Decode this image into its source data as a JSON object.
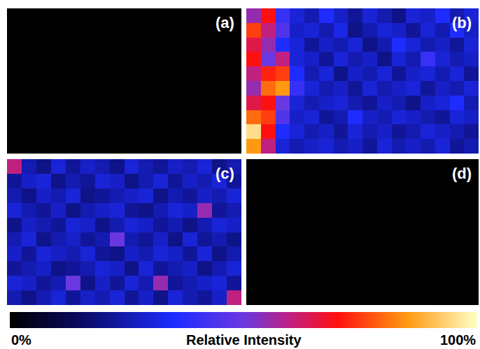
{
  "chart_data": {
    "type": "heatmap",
    "tick_labels": false,
    "panels": [
      {
        "label": "(a)",
        "z": [
          [
            0,
            0,
            0,
            0,
            0,
            0,
            0,
            0,
            0,
            0,
            0,
            0,
            0,
            0,
            0,
            0
          ],
          [
            0,
            0,
            0,
            0,
            0,
            0,
            0,
            0,
            0,
            0,
            0,
            0,
            0,
            0,
            0,
            0
          ],
          [
            0,
            0,
            0,
            0,
            0,
            0,
            0,
            0,
            0,
            0,
            0,
            0,
            0,
            0,
            0,
            0
          ],
          [
            0,
            0,
            0,
            0,
            0,
            0,
            0,
            0,
            0,
            0,
            0,
            0,
            0,
            0,
            0,
            0
          ],
          [
            0,
            0,
            0,
            0,
            0,
            0,
            0,
            0,
            0,
            0,
            0,
            0,
            0,
            0,
            0,
            0
          ],
          [
            0,
            0,
            0,
            0,
            0,
            0,
            0,
            0,
            0,
            0,
            0,
            0,
            0,
            0,
            0,
            0
          ],
          [
            0,
            0,
            0,
            0,
            0,
            0,
            0,
            0,
            0,
            0,
            0,
            0,
            0,
            0,
            0,
            0
          ],
          [
            0,
            0,
            0,
            0,
            0,
            0,
            0,
            0,
            0,
            0,
            0,
            0,
            0,
            0,
            0,
            0
          ],
          [
            0,
            0,
            0,
            0,
            0,
            0,
            0,
            0,
            0,
            0,
            0,
            0,
            0,
            0,
            0,
            0
          ],
          [
            0,
            0,
            0,
            0,
            0,
            0,
            0,
            0,
            0,
            0,
            0,
            0,
            0,
            0,
            0,
            0
          ]
        ]
      },
      {
        "label": "(b)",
        "z": [
          [
            55,
            70,
            40,
            30,
            25,
            35,
            28,
            22,
            30,
            25,
            20,
            30,
            28,
            35,
            25,
            30
          ],
          [
            75,
            60,
            45,
            28,
            30,
            25,
            32,
            20,
            25,
            30,
            28,
            22,
            30,
            25,
            35,
            28
          ],
          [
            65,
            55,
            35,
            30,
            22,
            28,
            25,
            30,
            20,
            25,
            35,
            30,
            25,
            28,
            22,
            30
          ],
          [
            70,
            50,
            60,
            30,
            28,
            22,
            30,
            25,
            28,
            20,
            30,
            25,
            40,
            30,
            25,
            28
          ],
          [
            60,
            72,
            75,
            35,
            25,
            30,
            20,
            28,
            25,
            30,
            22,
            28,
            30,
            25,
            30,
            22
          ],
          [
            55,
            80,
            85,
            40,
            30,
            25,
            28,
            22,
            30,
            25,
            28,
            30,
            22,
            28,
            25,
            30
          ],
          [
            65,
            70,
            50,
            30,
            25,
            28,
            30,
            25,
            22,
            28,
            25,
            20,
            28,
            30,
            35,
            25
          ],
          [
            80,
            75,
            45,
            28,
            30,
            22,
            25,
            35,
            28,
            25,
            30,
            28,
            25,
            22,
            30,
            28
          ],
          [
            95,
            70,
            35,
            30,
            25,
            28,
            22,
            30,
            25,
            28,
            22,
            25,
            30,
            28,
            25,
            22
          ],
          [
            85,
            60,
            30,
            25,
            28,
            30,
            25,
            28,
            22,
            30,
            25,
            28,
            25,
            30,
            22,
            25
          ]
        ]
      },
      {
        "label": "(c)",
        "z": [
          [
            60,
            25,
            20,
            30,
            22,
            28,
            25,
            20,
            30,
            25,
            22,
            28,
            25,
            30,
            20,
            25
          ],
          [
            22,
            28,
            30,
            20,
            25,
            22,
            30,
            28,
            20,
            25,
            30,
            22,
            28,
            25,
            30,
            22
          ],
          [
            25,
            20,
            28,
            25,
            30,
            20,
            22,
            25,
            28,
            30,
            20,
            25,
            22,
            28,
            25,
            30
          ],
          [
            30,
            25,
            22,
            28,
            20,
            25,
            28,
            30,
            22,
            20,
            25,
            30,
            28,
            55,
            22,
            25
          ],
          [
            20,
            28,
            25,
            22,
            30,
            28,
            20,
            25,
            30,
            28,
            22,
            25,
            20,
            25,
            30,
            28
          ],
          [
            25,
            30,
            20,
            25,
            28,
            22,
            25,
            50,
            25,
            22,
            28,
            20,
            30,
            22,
            25,
            20
          ],
          [
            28,
            22,
            30,
            28,
            25,
            30,
            22,
            20,
            28,
            25,
            30,
            28,
            22,
            30,
            20,
            25
          ],
          [
            22,
            25,
            28,
            20,
            22,
            25,
            30,
            28,
            20,
            30,
            22,
            25,
            28,
            20,
            25,
            30
          ],
          [
            30,
            28,
            22,
            25,
            50,
            20,
            28,
            22,
            30,
            25,
            55,
            22,
            25,
            28,
            30,
            22
          ],
          [
            25,
            20,
            25,
            30,
            22,
            28,
            25,
            30,
            22,
            28,
            20,
            30,
            25,
            22,
            28,
            60
          ]
        ]
      },
      {
        "label": "(d)",
        "z": [
          [
            0,
            0,
            0,
            0,
            0,
            0,
            0,
            0,
            0,
            0,
            0,
            0,
            0,
            0,
            0,
            0
          ],
          [
            0,
            0,
            0,
            0,
            0,
            0,
            0,
            0,
            0,
            0,
            0,
            0,
            0,
            0,
            0,
            0
          ],
          [
            0,
            0,
            0,
            0,
            0,
            0,
            0,
            0,
            0,
            0,
            0,
            0,
            0,
            0,
            0,
            0
          ],
          [
            0,
            0,
            0,
            0,
            0,
            0,
            0,
            0,
            0,
            0,
            0,
            0,
            0,
            0,
            0,
            0
          ],
          [
            0,
            0,
            0,
            0,
            0,
            0,
            0,
            0,
            0,
            0,
            0,
            0,
            0,
            0,
            0,
            0
          ],
          [
            0,
            0,
            0,
            0,
            0,
            0,
            0,
            0,
            0,
            0,
            0,
            0,
            0,
            0,
            0,
            0
          ],
          [
            0,
            0,
            0,
            0,
            0,
            0,
            0,
            0,
            0,
            0,
            0,
            0,
            0,
            0,
            0,
            0
          ],
          [
            0,
            0,
            0,
            0,
            0,
            0,
            0,
            0,
            0,
            0,
            0,
            0,
            0,
            0,
            0,
            0
          ],
          [
            0,
            0,
            0,
            0,
            0,
            0,
            0,
            0,
            0,
            0,
            0,
            0,
            0,
            0,
            0,
            0
          ],
          [
            0,
            0,
            0,
            0,
            0,
            0,
            0,
            0,
            0,
            0,
            0,
            0,
            0,
            0,
            0,
            0
          ]
        ]
      }
    ],
    "colorbar": {
      "title": "Relative Intensity",
      "range": [
        0,
        100
      ],
      "ticks": [
        {
          "value": 0,
          "label": "0%"
        },
        {
          "value": 100,
          "label": "100%"
        }
      ]
    }
  }
}
